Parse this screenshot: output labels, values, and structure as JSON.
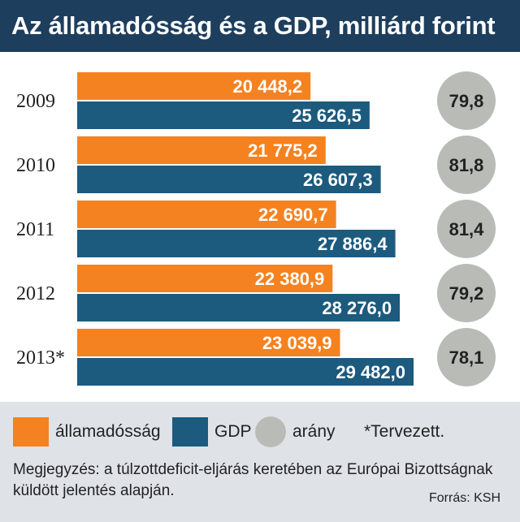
{
  "colors": {
    "header_bg": "#1d3e5d",
    "debt": "#f58220",
    "gdp": "#1c5a7e",
    "ratio": "#b9bcb6",
    "footer_bg": "#dfe3e8"
  },
  "chart_data": {
    "type": "bar",
    "orientation": "horizontal",
    "title": "Az államadósság és a GDP, milliárd forint",
    "categories": [
      "2009",
      "2010",
      "2011",
      "2012",
      "2013*"
    ],
    "series": [
      {
        "name": "államadósság",
        "color": "#f58220",
        "values": [
          20448.2,
          21775.2,
          22690.7,
          22380.9,
          23039.9
        ],
        "labels": [
          "20 448,2",
          "21 775,2",
          "22 690,7",
          "22 380,9",
          "23 039,9"
        ]
      },
      {
        "name": "GDP",
        "color": "#1c5a7e",
        "values": [
          25626.5,
          26607.3,
          27886.4,
          28276.0,
          29482.0
        ],
        "labels": [
          "25 626,5",
          "26 607,3",
          "27 886,4",
          "28 276,0",
          "29 482,0"
        ]
      }
    ],
    "ratio": {
      "name": "arány",
      "values": [
        79.8,
        81.8,
        81.4,
        79.2,
        78.1
      ],
      "labels": [
        "79,8",
        "81,8",
        "81,4",
        "79,2",
        "78,1"
      ]
    },
    "legend_position": "bottom",
    "grid": false
  },
  "legend": {
    "debt_label": "államadósság",
    "gdp_label": "GDP",
    "ratio_label": "arány",
    "footnote_label": "*Tervezett."
  },
  "note": "Megjegyzés: a túlzottdeficit-eljárás keretében az Európai Bizottságnak küldött jelentés alapján.",
  "source": "Forrás: KSH"
}
